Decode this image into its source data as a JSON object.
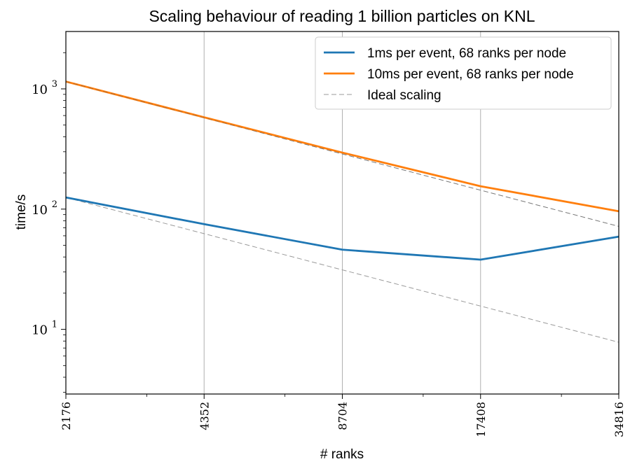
{
  "chart_data": {
    "type": "line",
    "title": "Scaling behaviour of reading 1 billion particles on KNL",
    "xlabel": "# ranks",
    "ylabel": "time/s",
    "x_scale": "log2",
    "y_scale": "log10",
    "x": [
      2176,
      4352,
      8704,
      17408,
      34816
    ],
    "x_tick_labels": [
      "2176",
      "4352",
      "8704",
      "17408",
      "34816"
    ],
    "xlim": [
      2176,
      34816
    ],
    "ylim": [
      2.9,
      3000
    ],
    "y_ticks": [
      {
        "value": 10,
        "base": "10",
        "exp": "1"
      },
      {
        "value": 100,
        "base": "10",
        "exp": "2"
      },
      {
        "value": 1000,
        "base": "10",
        "exp": "3"
      }
    ],
    "grid": "vertical major",
    "legend_position": "upper right",
    "series": [
      {
        "name": "1ms per event, 68 ranks per node",
        "color": "#1f77b4",
        "style": "solid",
        "values": [
          125,
          75,
          46,
          38,
          59
        ]
      },
      {
        "name": "10ms per event, 68 ranks per node",
        "color": "#ff7f0e",
        "style": "solid",
        "values": [
          1150,
          580,
          295,
          155,
          96
        ]
      },
      {
        "name": "Ideal scaling",
        "color": "#9a9a9a",
        "style": "dashed",
        "values": [
          1150,
          575,
          287.5,
          143.75,
          71.875
        ]
      }
    ],
    "extra_lines": [
      {
        "color": "#9a9a9a",
        "style": "dashed",
        "values": [
          125,
          62.5,
          31.25,
          15.625,
          7.8125
        ]
      }
    ]
  }
}
